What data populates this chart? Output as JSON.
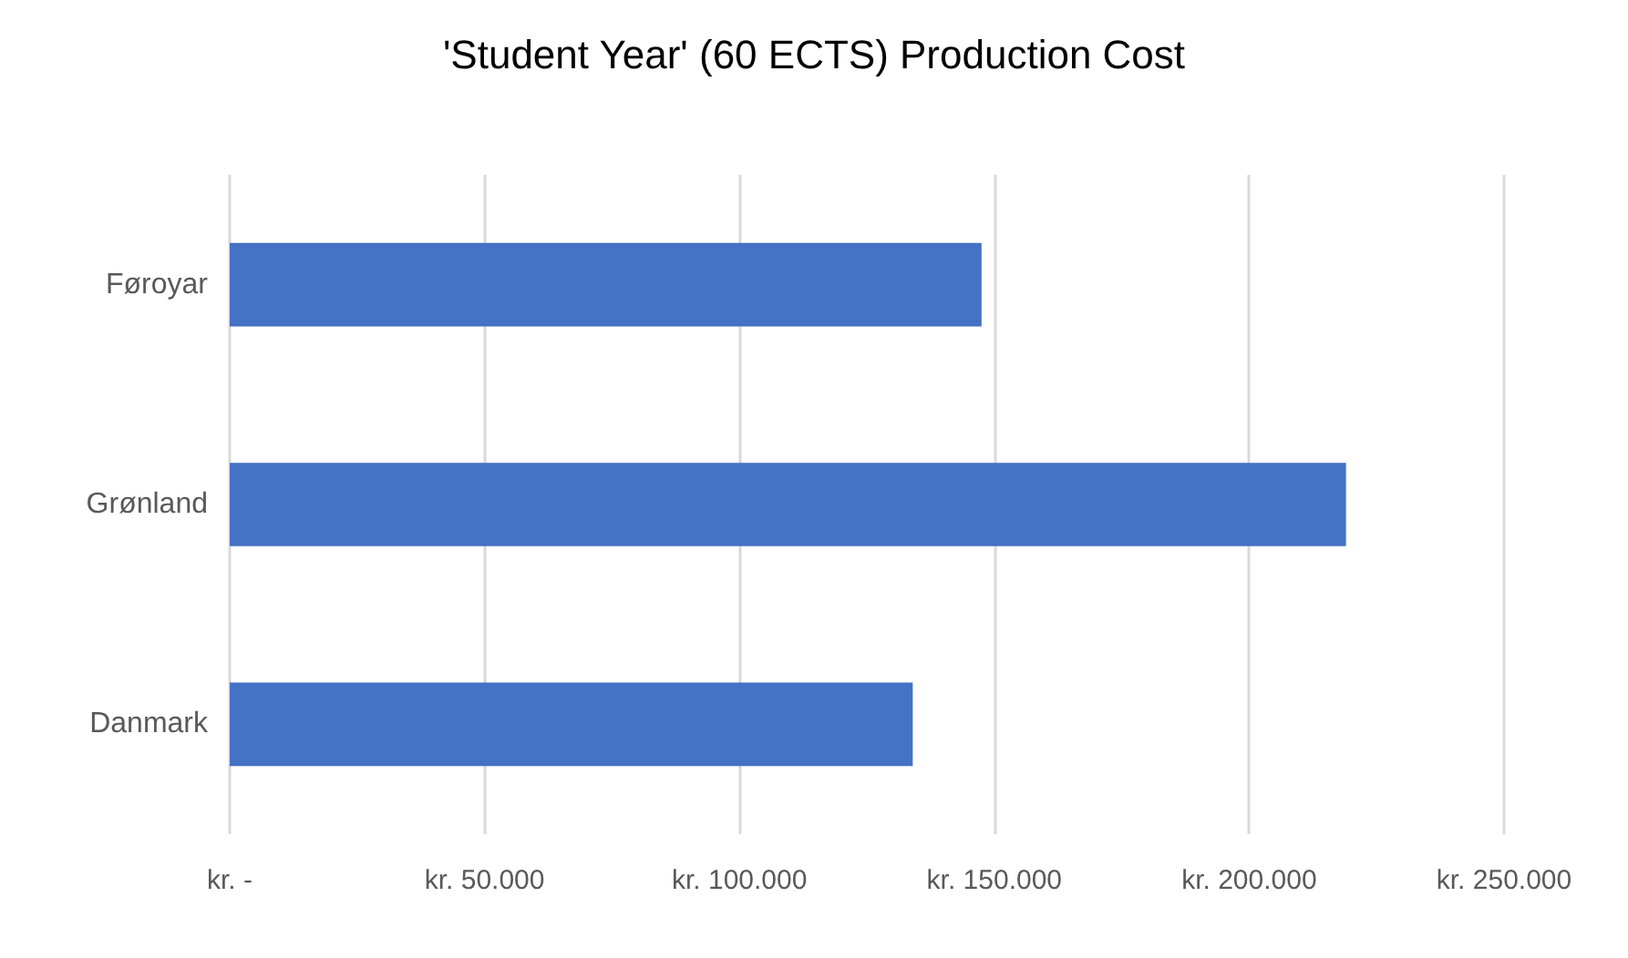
{
  "chart_data": {
    "type": "bar",
    "orientation": "horizontal",
    "title": "'Student Year' (60 ECTS) Production Cost",
    "categories": [
      "Føroyar",
      "Grønland",
      "Danmark"
    ],
    "values": [
      147500,
      219000,
      134000
    ],
    "color": "#4472c4",
    "xlim": [
      0,
      250000
    ],
    "xticks": [
      {
        "value": 0,
        "label": "kr. -"
      },
      {
        "value": 50000,
        "label": "kr. 50.000"
      },
      {
        "value": 100000,
        "label": "kr. 100.000"
      },
      {
        "value": 150000,
        "label": "kr. 150.000"
      },
      {
        "value": 200000,
        "label": "kr. 200.000"
      },
      {
        "value": 250000,
        "label": "kr. 250.000"
      }
    ],
    "grid": "x"
  }
}
